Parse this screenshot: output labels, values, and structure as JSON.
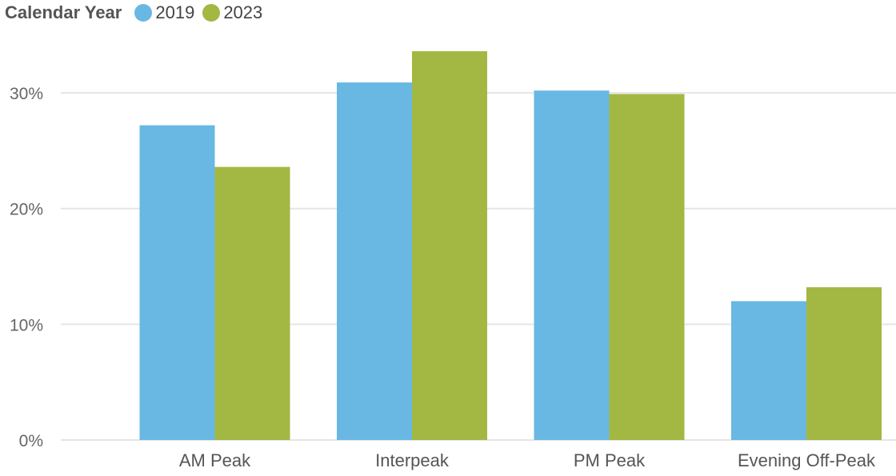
{
  "chart_data": {
    "type": "bar",
    "legend_title": "Calendar Year",
    "legend_position": "top-left",
    "categories": [
      "AM Peak",
      "Interpeak",
      "PM Peak",
      "Evening Off-Peak"
    ],
    "series": [
      {
        "name": "2019",
        "color": "#69B8E3",
        "values": [
          27.2,
          30.9,
          30.2,
          12.0
        ]
      },
      {
        "name": "2023",
        "color": "#A2B843",
        "values": [
          23.6,
          33.6,
          29.9,
          13.2
        ]
      }
    ],
    "y_ticks": [
      {
        "value": 0,
        "label": "0%"
      },
      {
        "value": 10,
        "label": "10%"
      },
      {
        "value": 20,
        "label": "20%"
      },
      {
        "value": 30,
        "label": "30%"
      }
    ],
    "ylim": [
      0,
      34.5
    ],
    "grid": true,
    "gridline_color": "#E6E6E6"
  }
}
